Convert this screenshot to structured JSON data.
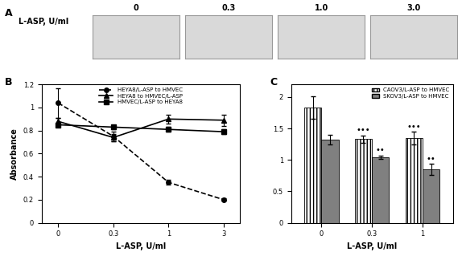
{
  "panel_a": {
    "title": "A",
    "row_label": "L-ASP, U/ml",
    "columns": [
      "0",
      "0.3",
      "1.0",
      "3.0"
    ]
  },
  "chart_data": [
    {
      "type": "line",
      "title": "B",
      "x_label": "L-ASP, U/ml",
      "y_label": "Absorbance",
      "categories": [
        "0",
        "0.3",
        "1",
        "3"
      ],
      "ylim": [
        0,
        1.2
      ],
      "yticks": [
        0,
        0.2,
        0.4,
        0.6,
        0.8,
        1,
        1.2
      ],
      "legend": "upper center",
      "series": [
        {
          "name": "HEYA8/L-ASP to HMVEC",
          "color": "#000000",
          "marker": "o",
          "line_style": "dashed",
          "values": [
            1.04,
            0.75,
            0.35,
            0.2
          ],
          "errors": [
            0.13,
            0.04,
            0.02,
            0.01
          ]
        },
        {
          "name": "HEYA8 to HMVEC/L-ASP",
          "color": "#000000",
          "marker": "^",
          "line_style": "solid",
          "values": [
            0.88,
            0.74,
            0.9,
            0.89
          ],
          "errors": [
            0.03,
            0.03,
            0.04,
            0.05
          ]
        },
        {
          "name": "HMVEC/L-ASP to HEYA8",
          "color": "#000000",
          "marker": "s",
          "line_style": "solid",
          "values": [
            0.85,
            0.83,
            0.81,
            0.79
          ],
          "errors": [
            0.02,
            0.02,
            0.02,
            0.02
          ]
        }
      ]
    },
    {
      "type": "bar",
      "title": "C",
      "x_label": "L-ASP, U/ml",
      "categories": [
        "0",
        "0.3",
        "1"
      ],
      "ylim": [
        0,
        2.2
      ],
      "yticks": [
        0,
        0.5,
        1,
        1.5,
        2
      ],
      "legend": "upper right",
      "series": [
        {
          "name": "CAOV3/L-ASP to HMVEC",
          "color": "#ffffff",
          "values": [
            1.83,
            1.33,
            1.35
          ],
          "errors": [
            0.18,
            0.06,
            0.1
          ]
        },
        {
          "name": "SKOV3/L-ASP to HMVEC",
          "color": "#808080",
          "values": [
            1.32,
            1.04,
            0.85
          ],
          "errors": [
            0.08,
            0.03,
            0.09
          ]
        }
      ],
      "annotations": [
        {
          "text": "•••",
          "category": "0.3",
          "series": "CAOV3/L-ASP to HMVEC"
        },
        {
          "text": "••",
          "category": "0.3",
          "series": "SKOV3/L-ASP to HMVEC"
        },
        {
          "text": "•••",
          "category": "1",
          "series": "CAOV3/L-ASP to HMVEC"
        },
        {
          "text": "••",
          "category": "1",
          "series": "SKOV3/L-ASP to HMVEC"
        }
      ]
    }
  ]
}
